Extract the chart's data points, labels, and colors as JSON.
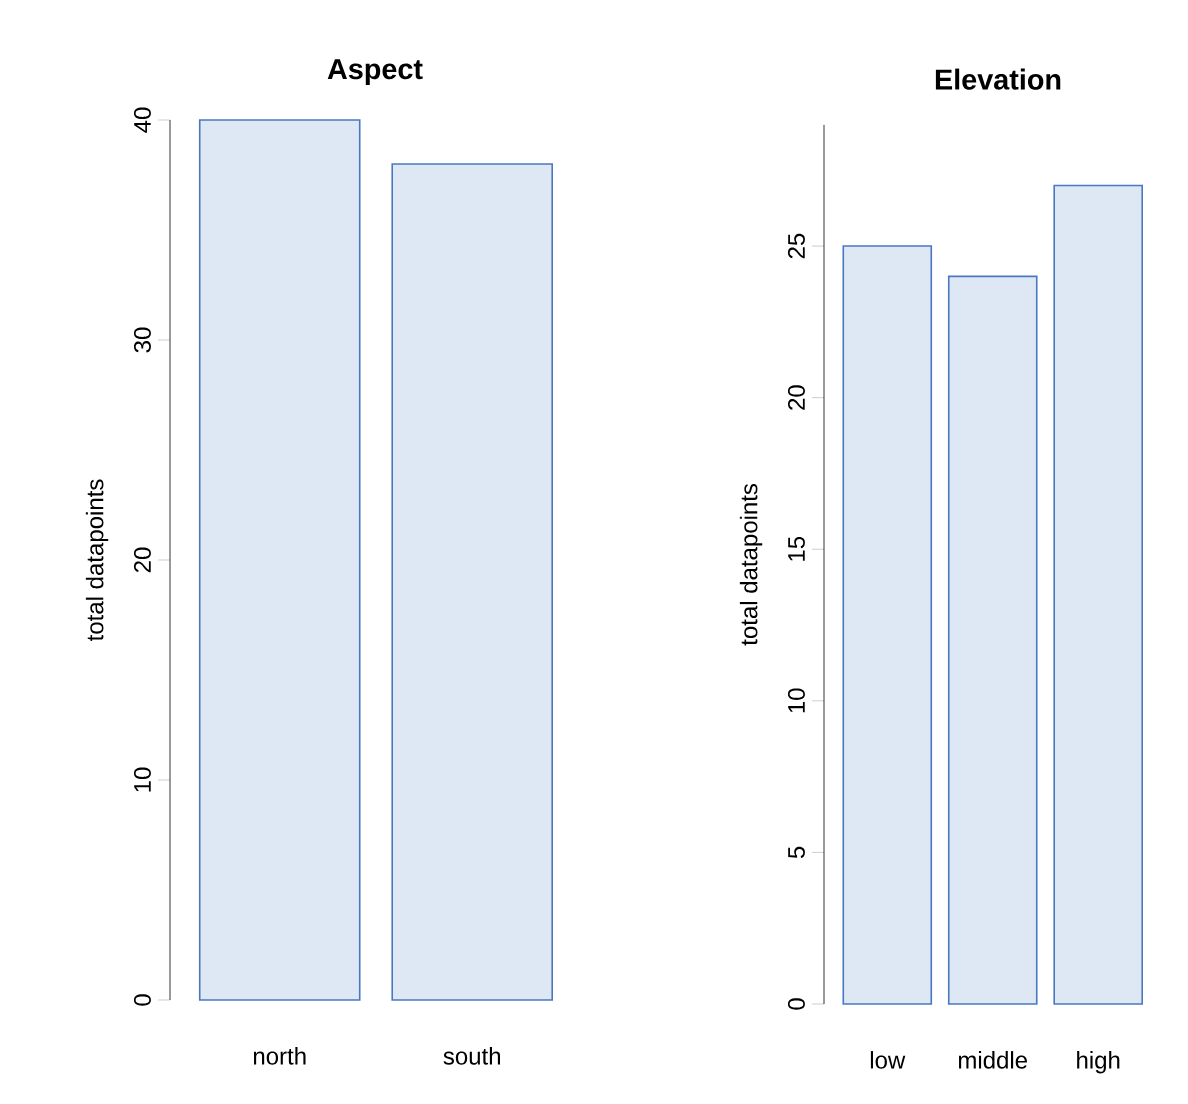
{
  "chart_data": [
    {
      "type": "bar",
      "title": "Aspect",
      "ylabel": "total datapoints",
      "categories": [
        "north",
        "south"
      ],
      "values": [
        40,
        38
      ],
      "color": "#4a78c0",
      "ylim": [
        0,
        40
      ],
      "yticks": [
        0,
        10,
        20,
        30,
        40
      ],
      "grid": false
    },
    {
      "type": "bar",
      "title": "Elevation",
      "ylabel": "total datapoints",
      "categories": [
        "low",
        "middle",
        "high"
      ],
      "values": [
        25,
        24,
        27
      ],
      "color": "#4a78c0",
      "ylim": [
        0,
        29
      ],
      "yticks": [
        0,
        5,
        10,
        15,
        20,
        25
      ],
      "grid": false
    }
  ]
}
